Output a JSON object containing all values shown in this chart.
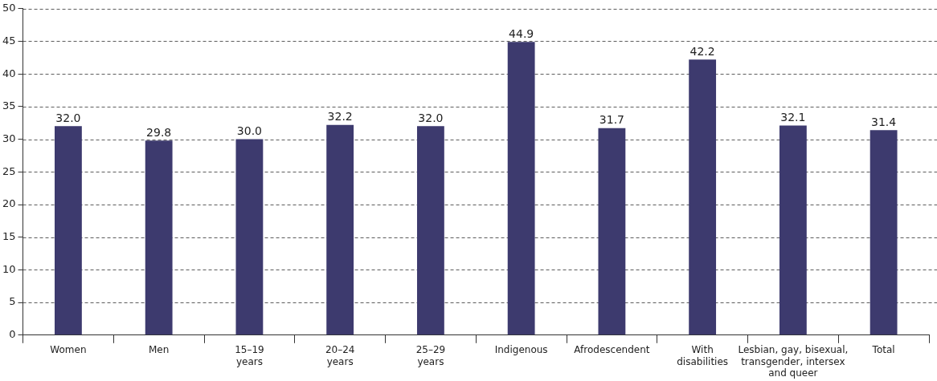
{
  "chart_data": {
    "type": "bar",
    "categories": [
      "Women",
      "Men",
      "15–19 years",
      "20–24 years",
      "25–29 years",
      "Indigenous",
      "Afrodescendent",
      "With disabilities",
      "Lesbian, gay, bisexual, transgender, intersex and queer",
      "Total"
    ],
    "values": [
      32.0,
      29.8,
      30.0,
      32.2,
      32.0,
      44.9,
      31.7,
      42.2,
      32.1,
      31.4
    ],
    "value_labels": [
      "32.0",
      "29.8",
      "30.0",
      "32.2",
      "32.0",
      "44.9",
      "31.7",
      "42.2",
      "32.1",
      "31.4"
    ],
    "color": "#3d3a6e",
    "ylim": [
      0,
      50
    ],
    "yticks": [
      0,
      5,
      10,
      15,
      20,
      25,
      30,
      35,
      40,
      45,
      50
    ],
    "grid": "y",
    "legend": false
  }
}
